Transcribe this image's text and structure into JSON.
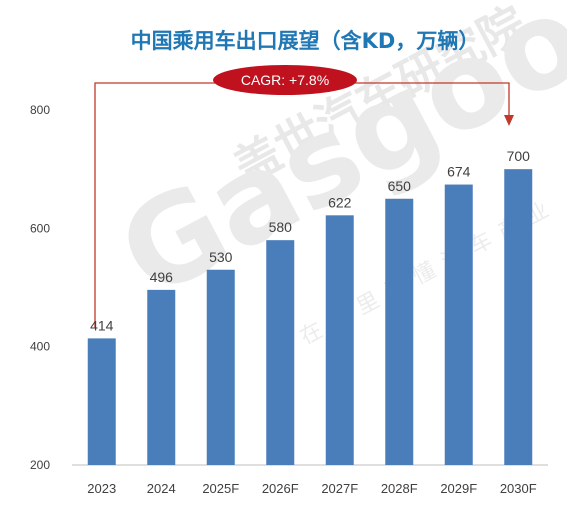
{
  "chart_data": {
    "type": "bar",
    "title": "中国乘用车出口展望（含KD，万辆）",
    "categories": [
      "2023",
      "2024",
      "2025F",
      "2026F",
      "2027F",
      "2028F",
      "2029F",
      "2030F"
    ],
    "values": [
      414,
      496,
      530,
      580,
      622,
      650,
      674,
      700
    ],
    "ylim": [
      200,
      800
    ],
    "yticks": [
      "200",
      "400",
      "600",
      "800"
    ],
    "annotation": "CAGR: +7.8%",
    "bar_color": "#4a7ebb",
    "title_color": "#1f77b4",
    "arrow_color": "#c0392b",
    "badge_color": "#c0111f",
    "grid": false,
    "legend": false
  },
  "watermark": {
    "logo_text": "Gasgoo",
    "cn_name": "盖世汽车研究院",
    "slogan": "在这里读懂汽车产业"
  }
}
